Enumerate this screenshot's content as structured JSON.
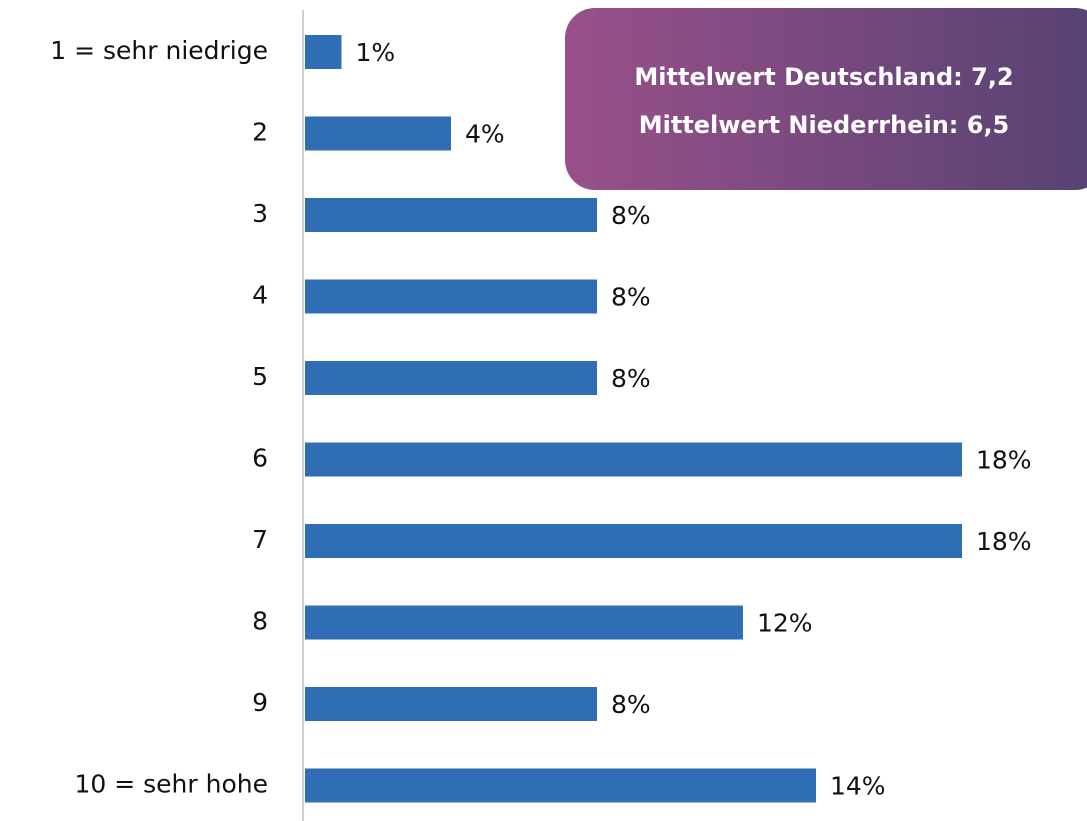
{
  "chart_data": {
    "type": "hbar",
    "categories": [
      "1 = sehr niedrige",
      "2",
      "3",
      "4",
      "5",
      "6",
      "7",
      "8",
      "9",
      "10 = sehr hohe"
    ],
    "values": [
      1,
      4,
      8,
      8,
      8,
      18,
      18,
      12,
      8,
      14
    ],
    "value_labels": [
      "1%",
      "4%",
      "8%",
      "8%",
      "8%",
      "18%",
      "18%",
      "12%",
      "8%",
      "14%"
    ],
    "color": "#2f6db5",
    "annotation": [
      "Mittelwert Deutschland: 7,2",
      "Mittelwert Niederrhein: 6,5"
    ]
  }
}
